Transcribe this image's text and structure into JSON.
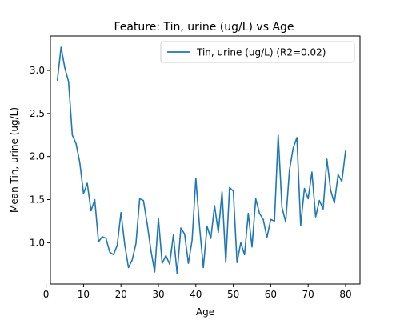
{
  "chart_data": {
    "type": "line",
    "title": "Feature: Tin, urine (ug/L) vs Age",
    "xlabel": "Age",
    "ylabel": "Mean Tin, urine (ug/L)",
    "xlim": [
      1.15,
      83.85
    ],
    "ylim": [
      0.52,
      3.4
    ],
    "xticks": [
      0,
      10,
      20,
      30,
      40,
      50,
      60,
      70,
      80
    ],
    "yticks": [
      1.0,
      1.5,
      2.0,
      2.5,
      3.0
    ],
    "ytick_labels": [
      "1.0",
      "1.5",
      "2.0",
      "2.5",
      "3.0"
    ],
    "grid": false,
    "legend_position": "top-right",
    "series": [
      {
        "name": "Tin, urine (ug/L) (R2=0.02)",
        "color": "#1f77b4",
        "x": [
          3,
          4,
          5,
          6,
          7,
          8,
          9,
          10,
          11,
          12,
          13,
          14,
          15,
          16,
          17,
          18,
          19,
          20,
          21,
          22,
          23,
          24,
          25,
          26,
          27,
          28,
          29,
          30,
          31,
          32,
          33,
          34,
          35,
          36,
          37,
          38,
          39,
          40,
          41,
          42,
          43,
          44,
          45,
          46,
          47,
          48,
          49,
          50,
          51,
          52,
          53,
          54,
          55,
          56,
          57,
          58,
          59,
          60,
          61,
          62,
          63,
          64,
          65,
          66,
          67,
          68,
          69,
          70,
          71,
          72,
          73,
          74,
          75,
          76,
          77,
          78,
          79,
          80
        ],
        "y": [
          2.88,
          3.27,
          3.03,
          2.87,
          2.25,
          2.15,
          1.93,
          1.57,
          1.69,
          1.37,
          1.5,
          1.01,
          1.07,
          1.05,
          0.89,
          0.86,
          0.97,
          1.35,
          0.98,
          0.71,
          0.8,
          0.99,
          1.51,
          1.49,
          1.22,
          0.91,
          0.66,
          1.28,
          0.76,
          0.85,
          0.75,
          1.09,
          0.64,
          1.17,
          1.1,
          0.76,
          1.03,
          1.75,
          1.18,
          0.71,
          1.19,
          1.05,
          1.43,
          1.12,
          1.59,
          0.77,
          1.64,
          1.6,
          0.77,
          1.0,
          0.86,
          1.34,
          0.95,
          1.51,
          1.34,
          1.27,
          1.06,
          1.27,
          1.25,
          2.25,
          1.41,
          1.24,
          1.84,
          2.1,
          2.22,
          1.2,
          1.63,
          1.51,
          1.82,
          1.3,
          1.49,
          1.39,
          1.97,
          1.61,
          1.46,
          1.79,
          1.71,
          2.07
        ]
      }
    ]
  }
}
